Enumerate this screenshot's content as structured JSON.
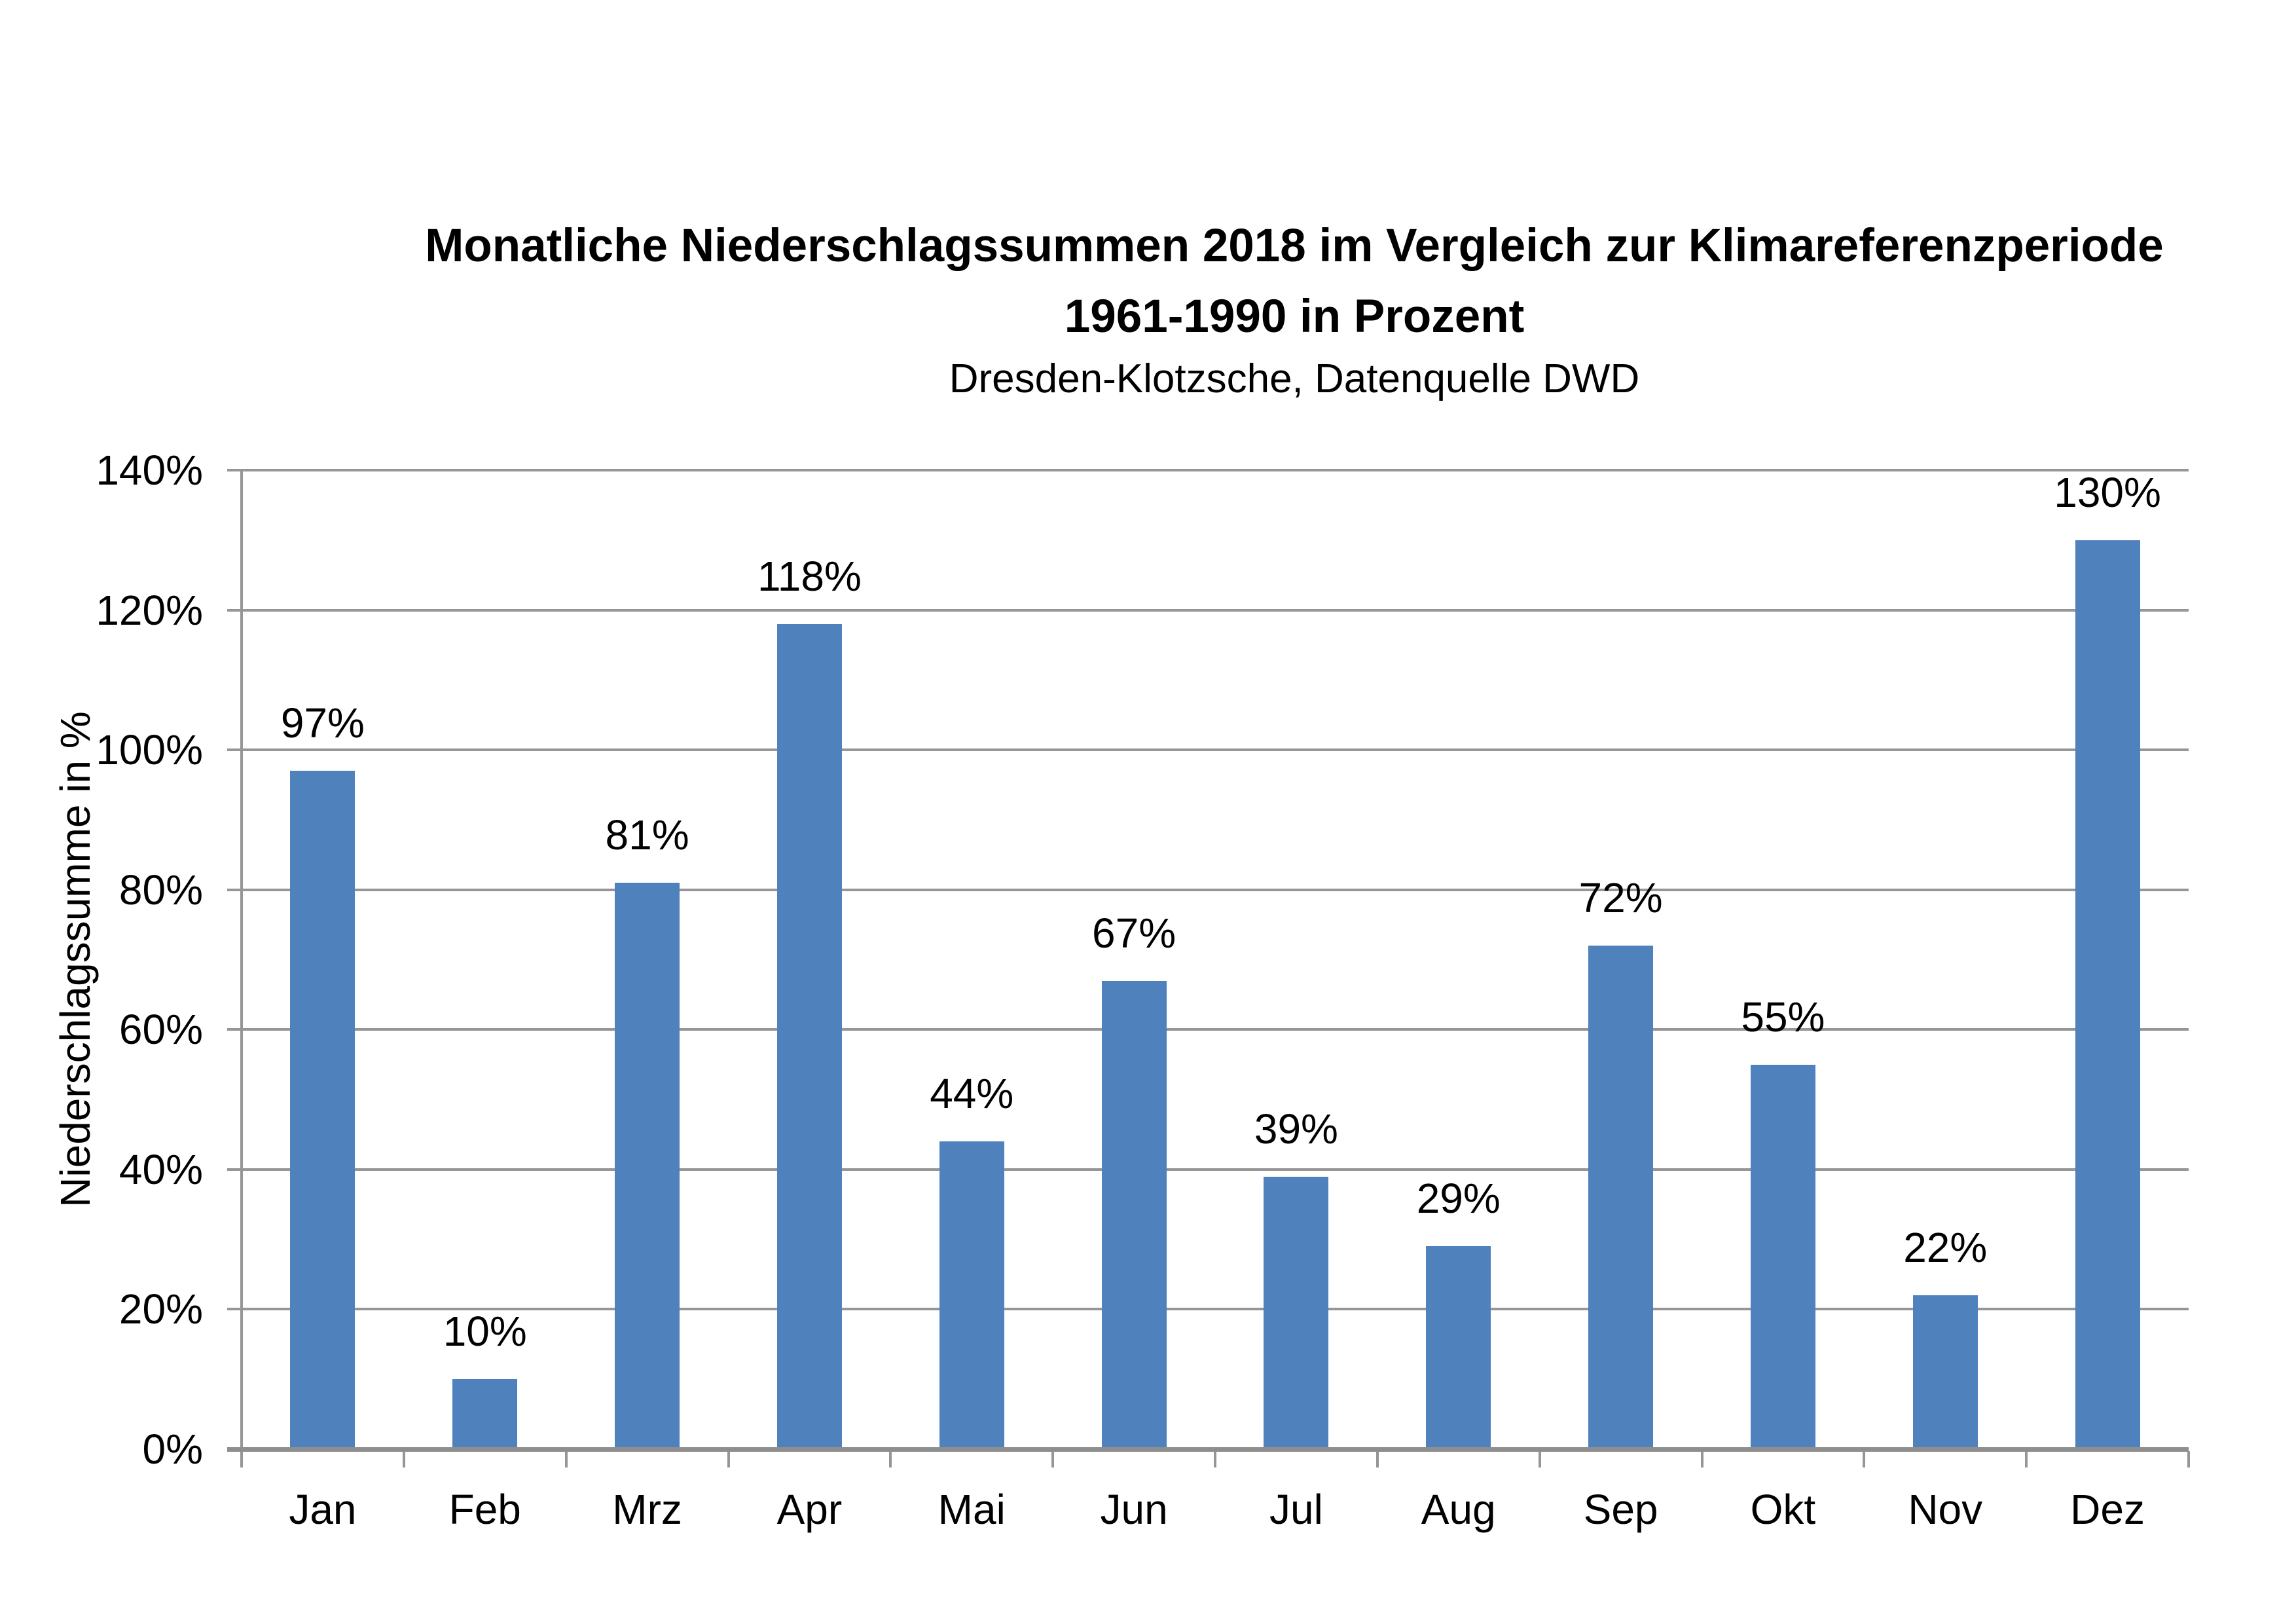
{
  "chart": {
    "title_line1": "Monatliche Niederschlagssummen 2018 im Vergleich zur Klimareferenzperiode",
    "title_line2": "1961-1990 in Prozent",
    "subtitle": "Dresden-Klotzsche, Datenquelle DWD"
  },
  "chart_data": {
    "type": "bar",
    "title": "Monatliche Niederschlagssummen 2018 im Vergleich zur Klimareferenzperiode 1961-1990 in Prozent",
    "title_lines": [
      "Monatliche Niederschlagssummen 2018 im Vergleich zur Klimareferenzperiode",
      "1961-1990 in Prozent"
    ],
    "subtitle": "Dresden-Klotzsche, Datenquelle DWD",
    "categories": [
      "Jan",
      "Feb",
      "Mrz",
      "Apr",
      "Mai",
      "Jun",
      "Jul",
      "Aug",
      "Sep",
      "Okt",
      "Nov",
      "Dez"
    ],
    "values": [
      97,
      10,
      81,
      118,
      44,
      67,
      39,
      29,
      72,
      55,
      22,
      130
    ],
    "data_labels": [
      "97%",
      "10%",
      "81%",
      "118%",
      "44%",
      "67%",
      "39%",
      "29%",
      "72%",
      "55%",
      "22%",
      "130%"
    ],
    "xlabel": "",
    "ylabel": "Niederschlagssumme in %",
    "ylim": [
      0,
      140
    ],
    "ytick_step": 20,
    "ytick_labels": [
      "0%",
      "20%",
      "40%",
      "60%",
      "80%",
      "100%",
      "120%",
      "140%"
    ],
    "grid": true,
    "legend": null,
    "colors": {
      "bar": "#4F81BD",
      "gridline": "#969696",
      "axis": "#8E8E8E",
      "text": "#000000",
      "background": "#FFFFFF"
    }
  }
}
